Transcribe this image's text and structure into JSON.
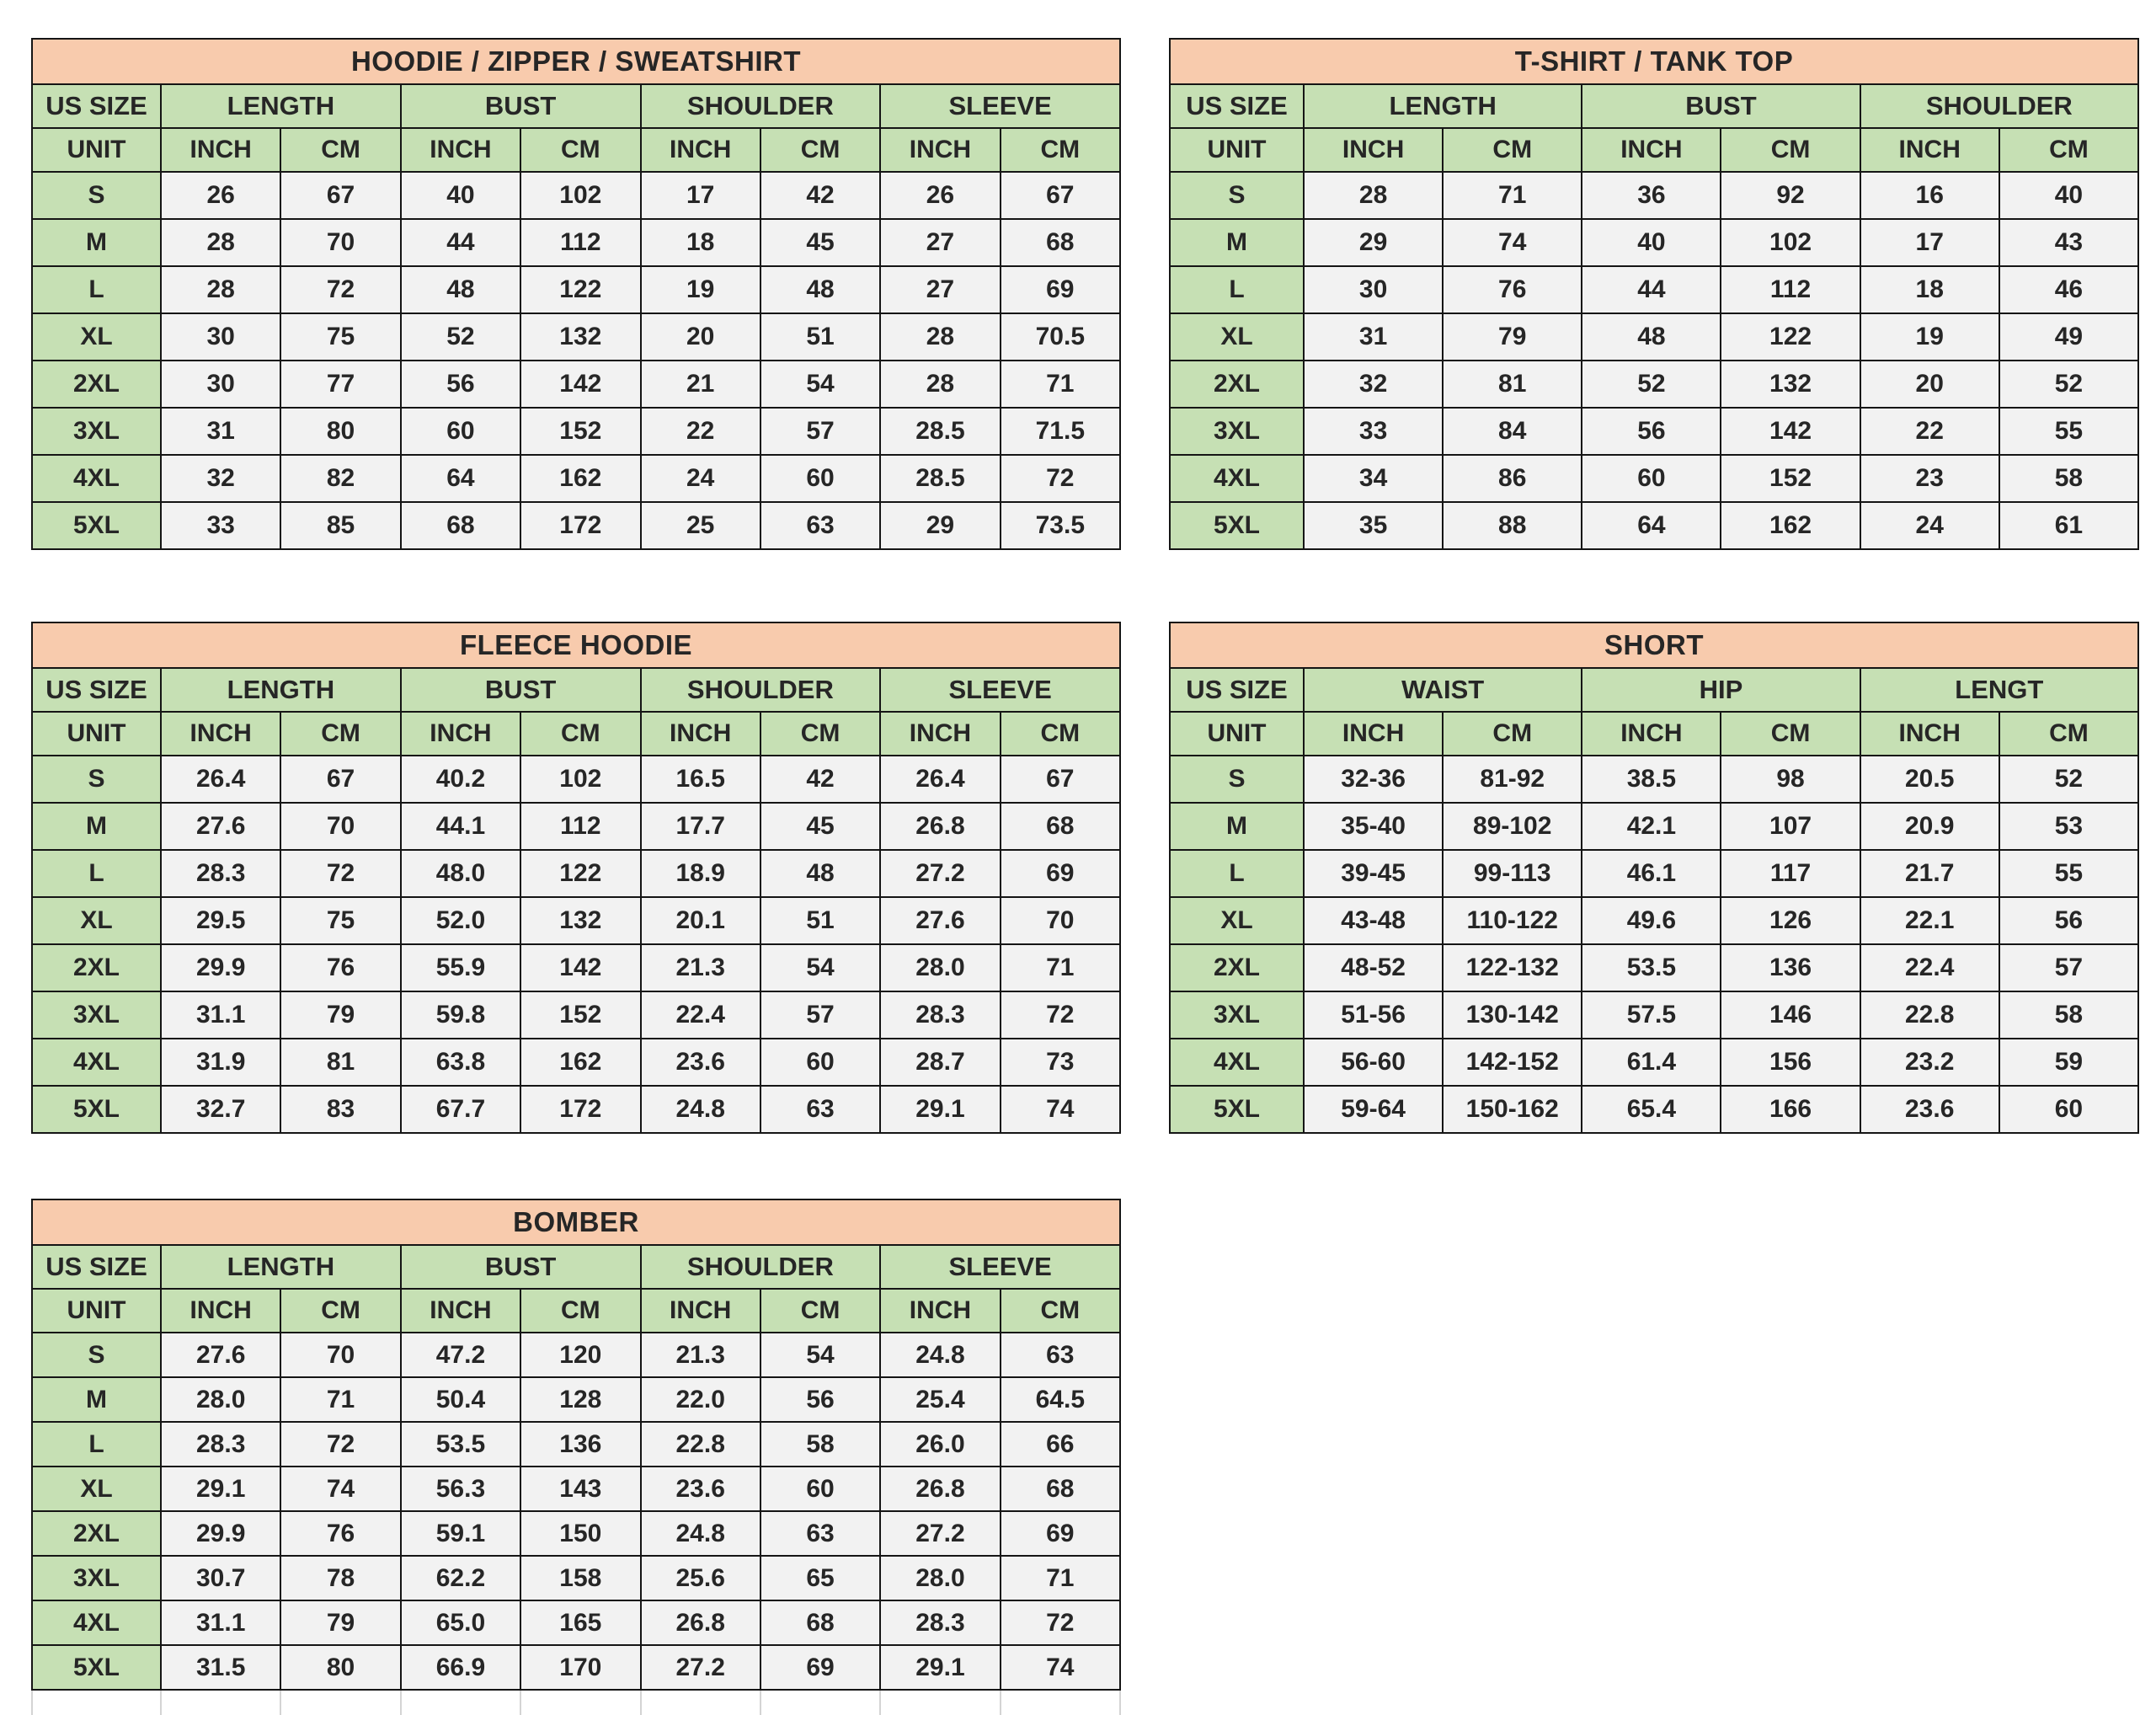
{
  "colors": {
    "title_bg": "#f8cbad",
    "header_bg": "#c6e0b4",
    "cell_bg": "#f2f2f2",
    "border": "#151515",
    "light_grid": "#d4d4d4",
    "text": "#262626"
  },
  "labels": {
    "us_size": "US SIZE",
    "unit": "UNIT",
    "inch": "INCH",
    "cm": "CM"
  },
  "tables": [
    {
      "title": "HOODIE / ZIPPER / SWEATSHIRT",
      "groups": [
        "LENGTH",
        "BUST",
        "SHOULDER",
        "SLEEVE"
      ],
      "sizes": [
        "S",
        "M",
        "L",
        "XL",
        "2XL",
        "3XL",
        "4XL",
        "5XL"
      ],
      "rows": [
        [
          "26",
          "67",
          "40",
          "102",
          "17",
          "42",
          "26",
          "67"
        ],
        [
          "28",
          "70",
          "44",
          "112",
          "18",
          "45",
          "27",
          "68"
        ],
        [
          "28",
          "72",
          "48",
          "122",
          "19",
          "48",
          "27",
          "69"
        ],
        [
          "30",
          "75",
          "52",
          "132",
          "20",
          "51",
          "28",
          "70.5"
        ],
        [
          "30",
          "77",
          "56",
          "142",
          "21",
          "54",
          "28",
          "71"
        ],
        [
          "31",
          "80",
          "60",
          "152",
          "22",
          "57",
          "28.5",
          "71.5"
        ],
        [
          "32",
          "82",
          "64",
          "162",
          "24",
          "60",
          "28.5",
          "72"
        ],
        [
          "33",
          "85",
          "68",
          "172",
          "25",
          "63",
          "29",
          "73.5"
        ]
      ]
    },
    {
      "title": "T-SHIRT / TANK TOP",
      "groups": [
        "LENGTH",
        "BUST",
        "SHOULDER"
      ],
      "sizes": [
        "S",
        "M",
        "L",
        "XL",
        "2XL",
        "3XL",
        "4XL",
        "5XL"
      ],
      "rows": [
        [
          "28",
          "71",
          "36",
          "92",
          "16",
          "40"
        ],
        [
          "29",
          "74",
          "40",
          "102",
          "17",
          "43"
        ],
        [
          "30",
          "76",
          "44",
          "112",
          "18",
          "46"
        ],
        [
          "31",
          "79",
          "48",
          "122",
          "19",
          "49"
        ],
        [
          "32",
          "81",
          "52",
          "132",
          "20",
          "52"
        ],
        [
          "33",
          "84",
          "56",
          "142",
          "22",
          "55"
        ],
        [
          "34",
          "86",
          "60",
          "152",
          "23",
          "58"
        ],
        [
          "35",
          "88",
          "64",
          "162",
          "24",
          "61"
        ]
      ]
    },
    {
      "title": "FLEECE HOODIE",
      "groups": [
        "LENGTH",
        "BUST",
        "SHOULDER",
        "SLEEVE"
      ],
      "sizes": [
        "S",
        "M",
        "L",
        "XL",
        "2XL",
        "3XL",
        "4XL",
        "5XL"
      ],
      "rows": [
        [
          "26.4",
          "67",
          "40.2",
          "102",
          "16.5",
          "42",
          "26.4",
          "67"
        ],
        [
          "27.6",
          "70",
          "44.1",
          "112",
          "17.7",
          "45",
          "26.8",
          "68"
        ],
        [
          "28.3",
          "72",
          "48.0",
          "122",
          "18.9",
          "48",
          "27.2",
          "69"
        ],
        [
          "29.5",
          "75",
          "52.0",
          "132",
          "20.1",
          "51",
          "27.6",
          "70"
        ],
        [
          "29.9",
          "76",
          "55.9",
          "142",
          "21.3",
          "54",
          "28.0",
          "71"
        ],
        [
          "31.1",
          "79",
          "59.8",
          "152",
          "22.4",
          "57",
          "28.3",
          "72"
        ],
        [
          "31.9",
          "81",
          "63.8",
          "162",
          "23.6",
          "60",
          "28.7",
          "73"
        ],
        [
          "32.7",
          "83",
          "67.7",
          "172",
          "24.8",
          "63",
          "29.1",
          "74"
        ]
      ]
    },
    {
      "title": "SHORT",
      "groups": [
        "WAIST",
        "HIP",
        "LENGT"
      ],
      "sizes": [
        "S",
        "M",
        "L",
        "XL",
        "2XL",
        "3XL",
        "4XL",
        "5XL"
      ],
      "rows": [
        [
          "32-36",
          "81-92",
          "38.5",
          "98",
          "20.5",
          "52"
        ],
        [
          "35-40",
          "89-102",
          "42.1",
          "107",
          "20.9",
          "53"
        ],
        [
          "39-45",
          "99-113",
          "46.1",
          "117",
          "21.7",
          "55"
        ],
        [
          "43-48",
          "110-122",
          "49.6",
          "126",
          "22.1",
          "56"
        ],
        [
          "48-52",
          "122-132",
          "53.5",
          "136",
          "22.4",
          "57"
        ],
        [
          "51-56",
          "130-142",
          "57.5",
          "146",
          "22.8",
          "58"
        ],
        [
          "56-60",
          "142-152",
          "61.4",
          "156",
          "23.2",
          "59"
        ],
        [
          "59-64",
          "150-162",
          "65.4",
          "166",
          "23.6",
          "60"
        ]
      ]
    },
    {
      "title": "BOMBER",
      "groups": [
        "LENGTH",
        "BUST",
        "SHOULDER",
        "SLEEVE"
      ],
      "sizes": [
        "S",
        "M",
        "L",
        "XL",
        "2XL",
        "3XL",
        "4XL",
        "5XL"
      ],
      "trailing_empty_row": true,
      "rows": [
        [
          "27.6",
          "70",
          "47.2",
          "120",
          "21.3",
          "54",
          "24.8",
          "63"
        ],
        [
          "28.0",
          "71",
          "50.4",
          "128",
          "22.0",
          "56",
          "25.4",
          "64.5"
        ],
        [
          "28.3",
          "72",
          "53.5",
          "136",
          "22.8",
          "58",
          "26.0",
          "66"
        ],
        [
          "29.1",
          "74",
          "56.3",
          "143",
          "23.6",
          "60",
          "26.8",
          "68"
        ],
        [
          "29.9",
          "76",
          "59.1",
          "150",
          "24.8",
          "63",
          "27.2",
          "69"
        ],
        [
          "30.7",
          "78",
          "62.2",
          "158",
          "25.6",
          "65",
          "28.0",
          "71"
        ],
        [
          "31.1",
          "79",
          "65.0",
          "165",
          "26.8",
          "68",
          "28.3",
          "72"
        ],
        [
          "31.5",
          "80",
          "66.9",
          "170",
          "27.2",
          "69",
          "29.1",
          "74"
        ]
      ]
    }
  ]
}
